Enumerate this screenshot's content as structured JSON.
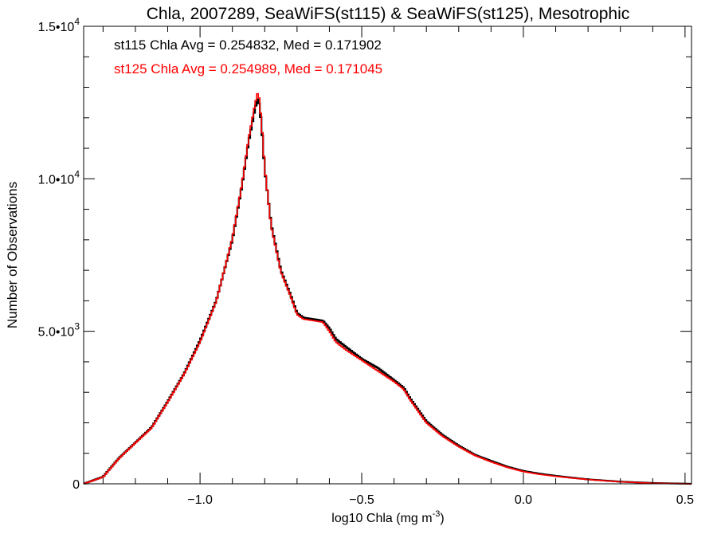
{
  "chart_data": {
    "type": "line",
    "title": "Chla, 2007289, SeaWiFS(st115) & SeaWiFS(st125), Mesotrophic",
    "xlabel": {
      "text": "log10 Chla (mg m",
      "sup": "-3",
      "close": ")"
    },
    "ylabel": "Number of Observations",
    "xlim": [
      -1.36,
      0.52
    ],
    "ylim": [
      0,
      15000
    ],
    "x_ticks": [
      {
        "value": -1.0,
        "label": "−1.0"
      },
      {
        "value": -0.5,
        "label": "−0.5"
      },
      {
        "value": 0.0,
        "label": "0.0"
      },
      {
        "value": 0.5,
        "label": "0.5"
      }
    ],
    "y_ticks": [
      {
        "value": 0,
        "mantissa": "0",
        "exponent": ""
      },
      {
        "value": 5000,
        "mantissa": "5.0•10",
        "exponent": "3"
      },
      {
        "value": 10000,
        "mantissa": "1.0•10",
        "exponent": "4"
      },
      {
        "value": 15000,
        "mantissa": "1.5•10",
        "exponent": "4"
      }
    ],
    "x_minor_step": 0.1,
    "y_minor_step": 1000,
    "annotations": [
      {
        "text": "st115 Chla Avg = 0.254832, Med = 0.171902",
        "color": "#000000"
      },
      {
        "text": "st125 Chla Avg = 0.254989, Med = 0.171045",
        "color": "#ff0000"
      }
    ],
    "series": [
      {
        "color": "#000000",
        "x": [
          -1.36,
          -1.3,
          -1.25,
          -1.2,
          -1.15,
          -1.1,
          -1.05,
          -1.0,
          -0.95,
          -0.9,
          -0.87,
          -0.85,
          -0.83,
          -0.82,
          -0.81,
          -0.8,
          -0.78,
          -0.75,
          -0.72,
          -0.7,
          -0.68,
          -0.65,
          -0.62,
          -0.6,
          -0.58,
          -0.55,
          -0.5,
          -0.45,
          -0.4,
          -0.37,
          -0.35,
          -0.3,
          -0.25,
          -0.2,
          -0.15,
          -0.1,
          -0.05,
          0.0,
          0.05,
          0.1,
          0.15,
          0.2,
          0.3,
          0.4,
          0.52
        ],
        "y": [
          0,
          230,
          850,
          1350,
          1850,
          2700,
          3600,
          4700,
          6000,
          8000,
          9800,
          11200,
          12300,
          12700,
          11800,
          10300,
          8500,
          7000,
          6200,
          5600,
          5450,
          5400,
          5350,
          5100,
          4750,
          4500,
          4100,
          3800,
          3400,
          3150,
          2800,
          2050,
          1600,
          1250,
          950,
          750,
          560,
          420,
          330,
          260,
          200,
          145,
          70,
          25,
          0
        ]
      },
      {
        "color": "#ff0000",
        "x": [
          -1.36,
          -1.3,
          -1.25,
          -1.2,
          -1.15,
          -1.1,
          -1.05,
          -1.0,
          -0.95,
          -0.9,
          -0.87,
          -0.85,
          -0.83,
          -0.82,
          -0.81,
          -0.8,
          -0.78,
          -0.75,
          -0.72,
          -0.7,
          -0.68,
          -0.65,
          -0.62,
          -0.6,
          -0.58,
          -0.55,
          -0.5,
          -0.45,
          -0.4,
          -0.37,
          -0.35,
          -0.3,
          -0.25,
          -0.2,
          -0.15,
          -0.1,
          -0.05,
          0.0,
          0.05,
          0.1,
          0.15,
          0.2,
          0.3,
          0.4,
          0.52
        ],
        "y": [
          0,
          220,
          840,
          1340,
          1830,
          2680,
          3580,
          4650,
          5980,
          8050,
          9850,
          11300,
          12450,
          12900,
          11900,
          10350,
          8450,
          6950,
          6150,
          5550,
          5400,
          5350,
          5300,
          5000,
          4650,
          4400,
          4050,
          3700,
          3350,
          3100,
          2750,
          2000,
          1560,
          1220,
          930,
          720,
          540,
          400,
          310,
          245,
          190,
          140,
          65,
          20,
          0
        ]
      }
    ]
  }
}
